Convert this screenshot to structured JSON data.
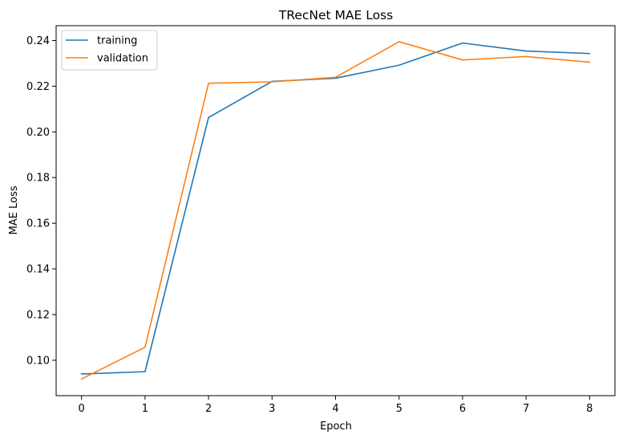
{
  "chart_data": {
    "type": "line",
    "title": "TRecNet MAE Loss",
    "xlabel": "Epoch",
    "ylabel": "MAE Loss",
    "x": [
      0,
      1,
      2,
      3,
      4,
      5,
      6,
      7,
      8
    ],
    "xticks": [
      "0",
      "1",
      "2",
      "3",
      "4",
      "5",
      "6",
      "7",
      "8"
    ],
    "yticks": [
      "0.10",
      "0.12",
      "0.14",
      "0.16",
      "0.18",
      "0.20",
      "0.22",
      "0.24"
    ],
    "xlim": [
      -0.4,
      8.4
    ],
    "ylim": [
      0.0845,
      0.2465
    ],
    "grid": false,
    "legend_position": "top-left",
    "series": [
      {
        "name": "training",
        "color": "#1f77b4",
        "values": [
          0.094,
          0.095,
          0.2063,
          0.2221,
          0.2235,
          0.2292,
          0.2389,
          0.2354,
          0.2343
        ]
      },
      {
        "name": "validation",
        "color": "#ff7f0e",
        "values": [
          0.0918,
          0.1057,
          0.2213,
          0.2219,
          0.2239,
          0.2395,
          0.2315,
          0.233,
          0.2305
        ]
      }
    ]
  }
}
